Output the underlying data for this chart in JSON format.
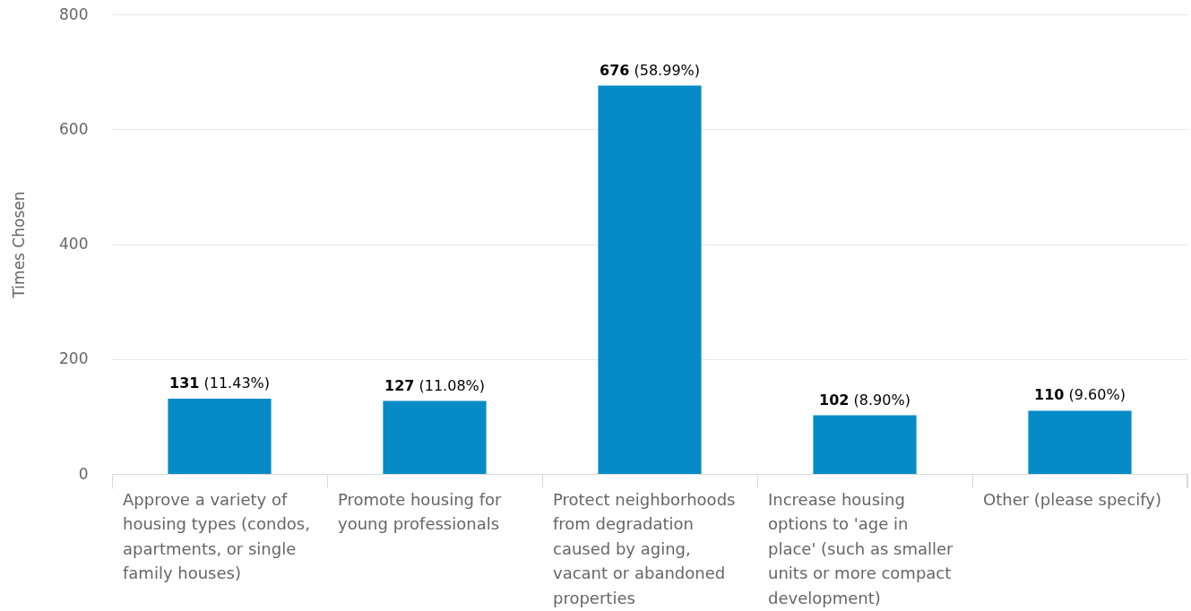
{
  "chart_data": {
    "type": "bar",
    "ylabel": "Times Chosen",
    "categories": [
      "Approve a variety of housing types (condos, apartments, or single family houses)",
      "Promote housing for young professionals",
      "Protect neighborhoods from degradation caused by aging, vacant or abandoned properties",
      "Increase housing options to 'age in place' (such as smaller units or more compact development)",
      "Other (please specify)"
    ],
    "values": [
      131,
      127,
      676,
      102,
      110
    ],
    "color": "#068bc7",
    "value_labels": [
      "131 (11.43%)",
      "127 (11.08%)",
      "676 (58.99%)",
      "102 (8.90%)",
      "110 (9.60%)"
    ],
    "ylim": [
      0,
      800
    ],
    "yticks": [
      0,
      200,
      400,
      600,
      800
    ],
    "grid": "y"
  }
}
